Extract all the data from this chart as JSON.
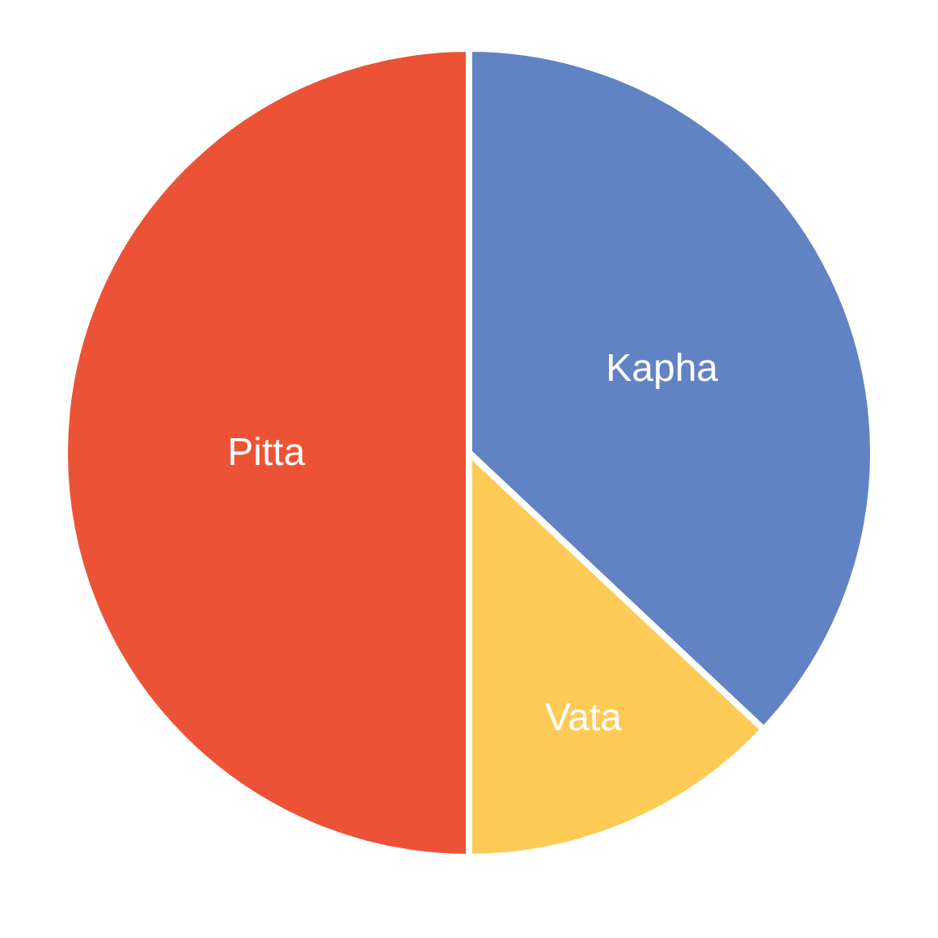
{
  "chart_data": {
    "type": "pie",
    "categories": [
      "Kapha",
      "Vata",
      "Pitta"
    ],
    "values": [
      37,
      13,
      50
    ],
    "colors": [
      "#6283c3",
      "#fecb57",
      "#ec5336"
    ],
    "legend": false
  }
}
